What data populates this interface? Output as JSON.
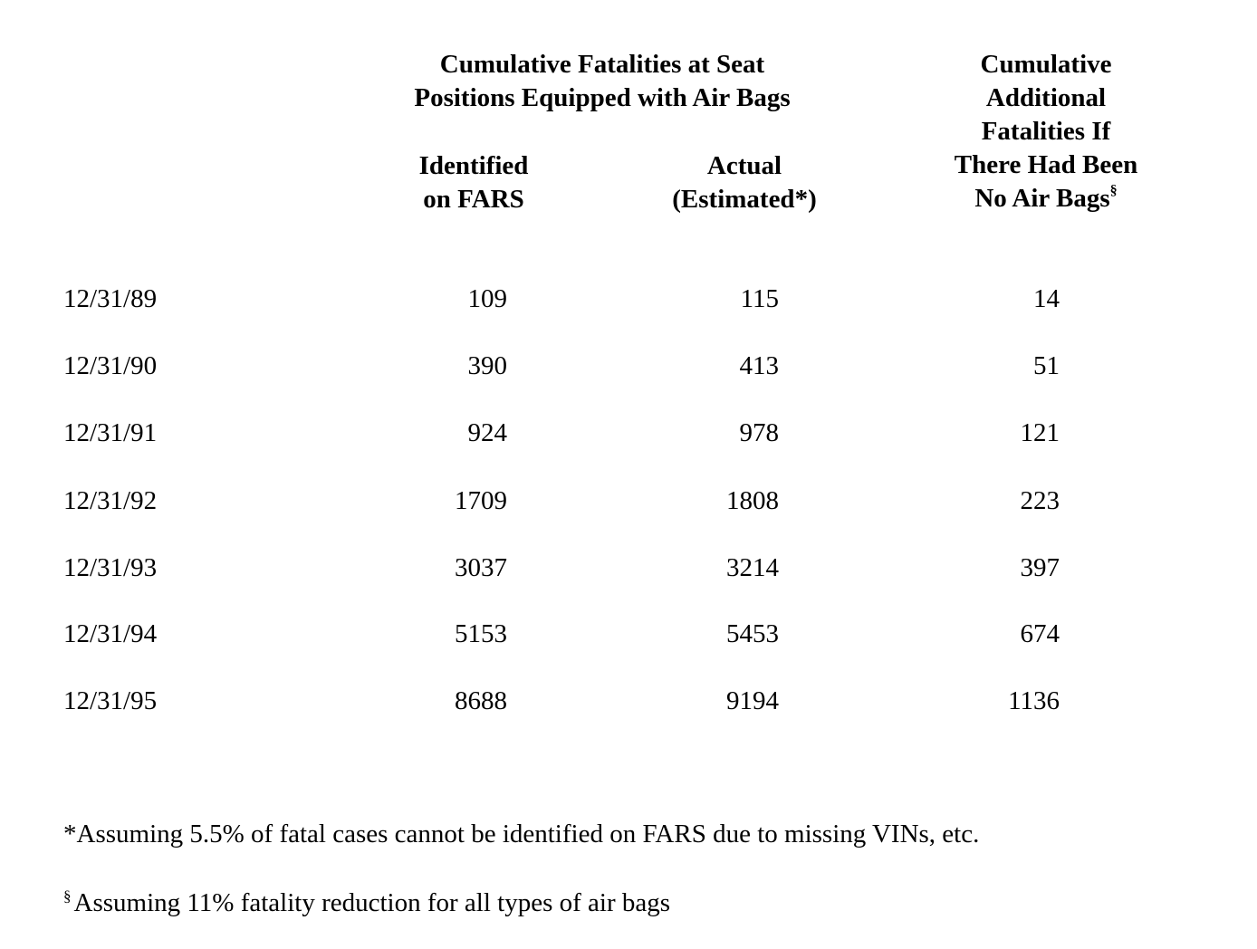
{
  "header": {
    "group_title_line1": "Cumulative  Fatalities at Seat",
    "group_title_line2": "Positions Equipped with Air Bags",
    "col_fars_line1": "Identified",
    "col_fars_line2": "on FARS",
    "col_actual_line1": "Actual",
    "col_actual_line2": "(Estimated*)",
    "col_nobag_line1": "Cumulative",
    "col_nobag_line2": "Additional",
    "col_nobag_line3": "Fatalities If",
    "col_nobag_line4": "There Had Been",
    "col_nobag_line5": "No Air Bags",
    "col_nobag_mark": "§"
  },
  "rows": [
    {
      "date": "12/31/89",
      "fars": "109",
      "actual": "115",
      "no_airbag": "14"
    },
    {
      "date": "12/31/90",
      "fars": "390",
      "actual": "413",
      "no_airbag": "51"
    },
    {
      "date": "12/31/91",
      "fars": "924",
      "actual": "978",
      "no_airbag": "121"
    },
    {
      "date": "12/31/92",
      "fars": "1709",
      "actual": "1808",
      "no_airbag": "223"
    },
    {
      "date": "12/31/93",
      "fars": "3037",
      "actual": "3214",
      "no_airbag": "397"
    },
    {
      "date": "12/31/94",
      "fars": "5153",
      "actual": "5453",
      "no_airbag": "674"
    },
    {
      "date": "12/31/95",
      "fars": "8688",
      "actual": "9194",
      "no_airbag": "1136"
    }
  ],
  "footnotes": {
    "asterisk_text": "*Assuming 5.5% of fatal cases cannot be identified on FARS due to missing VINs, etc.",
    "section_mark": "§",
    "section_text": "Assuming 11% fatality reduction for all types of air bags"
  }
}
